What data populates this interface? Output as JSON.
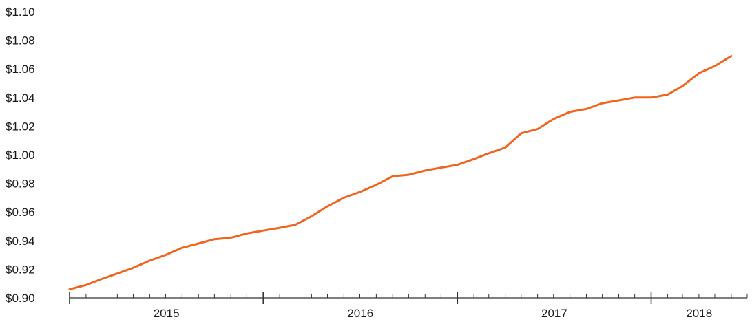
{
  "chart_data": {
    "type": "line",
    "title": "",
    "xlabel": "",
    "ylabel": "",
    "x_ticks": [
      "2015",
      "2016",
      "2017",
      "2018"
    ],
    "y_ticks": [
      "$0.90",
      "$0.92",
      "$0.94",
      "$0.96",
      "$0.98",
      "$1.00",
      "$1.02",
      "$1.04",
      "$1.06",
      "$1.08",
      "$1.10"
    ],
    "ylim": [
      0.9,
      1.1
    ],
    "xlim": [
      "2015-01-01",
      "2018-07-01"
    ],
    "grid": false,
    "legend": "none",
    "colors": {
      "line": "#f0641e",
      "axis": "#333333"
    },
    "series": [
      {
        "x": [
          "2015-01-01",
          "2015-02-01",
          "2015-03-01",
          "2015-04-01",
          "2015-05-01",
          "2015-06-01",
          "2015-07-01",
          "2015-08-01",
          "2015-09-01",
          "2015-10-01",
          "2015-11-01",
          "2015-12-01",
          "2016-01-01",
          "2016-02-01",
          "2016-03-01",
          "2016-04-01",
          "2016-05-01",
          "2016-06-01",
          "2016-07-01",
          "2016-08-01",
          "2016-09-01",
          "2016-10-01",
          "2016-11-01",
          "2016-12-01",
          "2017-01-01",
          "2017-02-01",
          "2017-03-01",
          "2017-04-01",
          "2017-05-01",
          "2017-06-01",
          "2017-07-01",
          "2017-08-01",
          "2017-09-01",
          "2017-10-01",
          "2017-11-01",
          "2017-12-01",
          "2018-01-01",
          "2018-02-01",
          "2018-03-01",
          "2018-04-01",
          "2018-05-01",
          "2018-06-01"
        ],
        "y": [
          0.906,
          0.909,
          0.913,
          0.917,
          0.921,
          0.926,
          0.93,
          0.935,
          0.938,
          0.941,
          0.942,
          0.945,
          0.947,
          0.949,
          0.951,
          0.957,
          0.964,
          0.97,
          0.974,
          0.979,
          0.985,
          0.986,
          0.989,
          0.991,
          0.993,
          0.997,
          1.001,
          1.005,
          1.015,
          1.018,
          1.025,
          1.03,
          1.032,
          1.036,
          1.038,
          1.04,
          1.04,
          1.042,
          1.048,
          1.057,
          1.062,
          1.069
        ]
      }
    ]
  }
}
